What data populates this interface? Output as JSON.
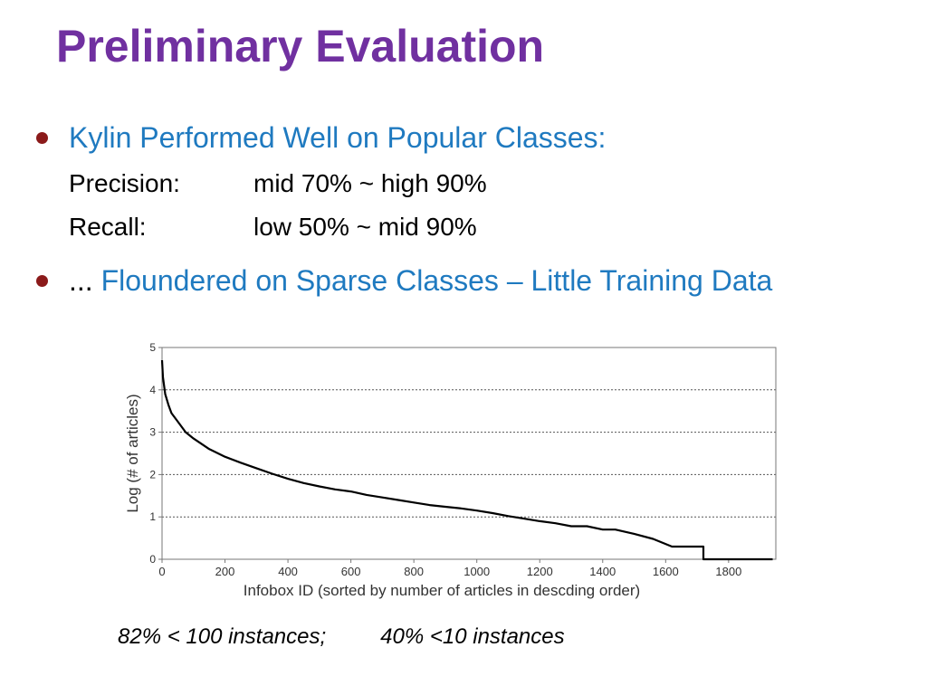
{
  "slide": {
    "title": "Preliminary Evaluation",
    "bullets": [
      {
        "lead": "",
        "text": "Kylin Performed Well on Popular Classes:"
      },
      {
        "lead": "...",
        "text": "Floundered on Sparse Classes – Little Training Data"
      }
    ],
    "metrics": [
      {
        "label": "Precision:",
        "value": "mid 70% ~ high 90%"
      },
      {
        "label": "Recall:",
        "value": "low 50% ~ mid 90%"
      }
    ],
    "caption_left": "82% < 100 instances;",
    "caption_right": "40% <10 instances",
    "colors": {
      "title": "#7030a0",
      "bullet_text": "#1f7ac0",
      "bullet_dot": "#8b1a1a"
    }
  },
  "chart_data": {
    "type": "line",
    "title": "",
    "xlabel": "Infobox  ID (sorted by number of articles in descding order)",
    "ylabel": "Log (# of articles)",
    "xlim": [
      0,
      1950
    ],
    "ylim": [
      0,
      5
    ],
    "x_ticks": [
      "0",
      "200",
      "400",
      "600",
      "800",
      "1000",
      "1200",
      "1400",
      "1600",
      "1800"
    ],
    "y_ticks": [
      "0",
      "1",
      "2",
      "3",
      "4",
      "5"
    ],
    "grid": "horizontal dashed",
    "legend": "none",
    "series": [
      {
        "x": [
          0,
          3,
          10,
          20,
          30,
          50,
          75,
          100,
          150,
          200,
          250,
          300,
          350,
          400,
          450,
          500,
          550,
          600,
          650,
          700,
          750,
          800,
          850,
          900,
          950,
          1000,
          1050,
          1100,
          1150,
          1200,
          1250,
          1300,
          1350,
          1400,
          1440,
          1500,
          1560,
          1620,
          1720,
          1720,
          1940
        ],
        "y": [
          4.7,
          4.3,
          3.9,
          3.65,
          3.45,
          3.25,
          3.0,
          2.85,
          2.6,
          2.42,
          2.28,
          2.15,
          2.02,
          1.9,
          1.8,
          1.72,
          1.65,
          1.6,
          1.52,
          1.46,
          1.4,
          1.34,
          1.28,
          1.24,
          1.2,
          1.15,
          1.09,
          1.02,
          0.96,
          0.9,
          0.85,
          0.78,
          0.78,
          0.7,
          0.7,
          0.6,
          0.48,
          0.3,
          0.3,
          0.0,
          0.0
        ]
      }
    ]
  }
}
